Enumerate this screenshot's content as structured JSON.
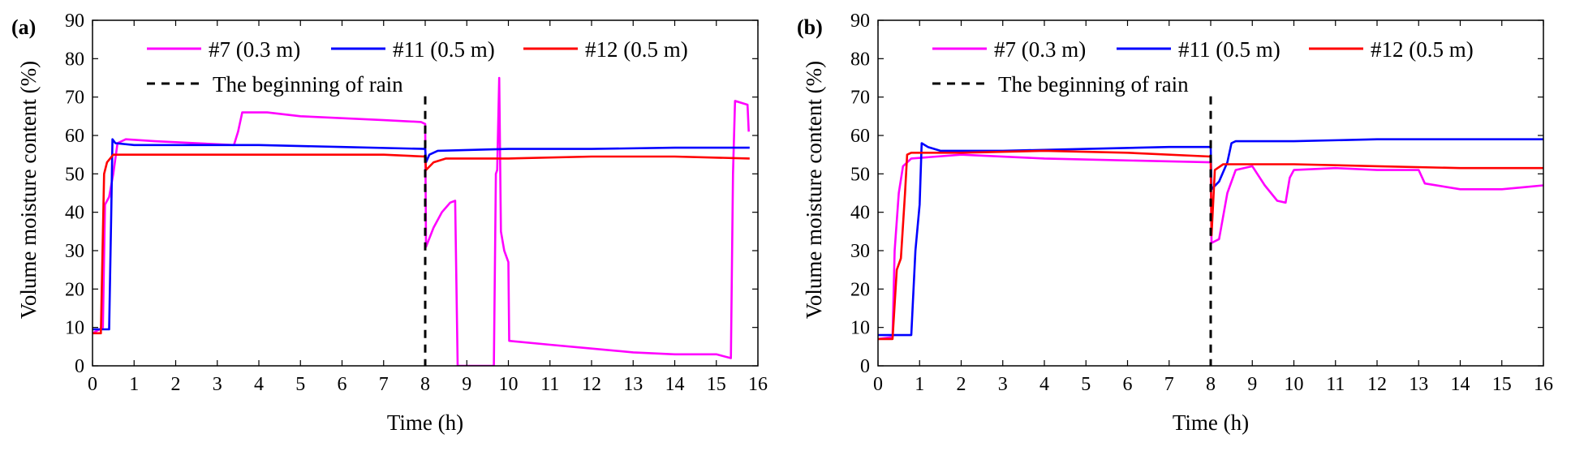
{
  "chart_data": [
    {
      "panel": "(a)",
      "type": "line",
      "xlabel": "Time (h)",
      "ylabel": "Volume moisture content (%)",
      "xlim": [
        0,
        16
      ],
      "ylim": [
        0,
        90
      ],
      "xticks": [
        "0",
        "1",
        "2",
        "3",
        "4",
        "5",
        "6",
        "7",
        "8",
        "9",
        "10",
        "11",
        "12",
        "13",
        "14",
        "15",
        "16"
      ],
      "yticks": [
        "0",
        "10",
        "20",
        "30",
        "40",
        "50",
        "60",
        "70",
        "80",
        "90"
      ],
      "legend": [
        "#7 (0.3 m)",
        "#11 (0.5 m)",
        "#12 (0.5 m)",
        "The beginning of rain"
      ],
      "rain_start": 8,
      "series": [
        {
          "name": "#7 (0.3 m)",
          "color": "#ff00ff",
          "points": [
            [
              0,
              8.5
            ],
            [
              0.25,
              10
            ],
            [
              0.3,
              42
            ],
            [
              0.4,
              44
            ],
            [
              0.5,
              50
            ],
            [
              0.6,
              58
            ],
            [
              0.8,
              59
            ],
            [
              1.5,
              58.5
            ],
            [
              3.4,
              57.5
            ],
            [
              3.5,
              61
            ],
            [
              3.6,
              66
            ],
            [
              4.2,
              66
            ],
            [
              5,
              65
            ],
            [
              6,
              64.5
            ],
            [
              7,
              64
            ],
            [
              7.9,
              63.5
            ],
            [
              8,
              63
            ],
            [
              8.02,
              31
            ],
            [
              8.2,
              36
            ],
            [
              8.4,
              40
            ],
            [
              8.6,
              42.5
            ],
            [
              8.72,
              43
            ],
            [
              8.78,
              0
            ],
            [
              9.65,
              0
            ],
            [
              9.7,
              50
            ],
            [
              9.73,
              51
            ],
            [
              9.78,
              75
            ],
            [
              9.82,
              35
            ],
            [
              9.9,
              30
            ],
            [
              10,
              27
            ],
            [
              10.02,
              6.5
            ],
            [
              11,
              5.5
            ],
            [
              12,
              4.5
            ],
            [
              13,
              3.5
            ],
            [
              14,
              3
            ],
            [
              15,
              3
            ],
            [
              15.35,
              2
            ],
            [
              15.4,
              50
            ],
            [
              15.45,
              69
            ],
            [
              15.6,
              68.5
            ],
            [
              15.75,
              68
            ],
            [
              15.78,
              61
            ]
          ]
        },
        {
          "name": "#11 (0.5 m)",
          "color": "#0000ff",
          "points": [
            [
              0,
              9.5
            ],
            [
              0.4,
              9.5
            ],
            [
              0.45,
              40
            ],
            [
              0.48,
              59
            ],
            [
              0.55,
              58
            ],
            [
              1,
              57.5
            ],
            [
              2,
              57.5
            ],
            [
              4,
              57.5
            ],
            [
              6,
              57
            ],
            [
              8,
              56.5
            ],
            [
              8.02,
              53
            ],
            [
              8.1,
              55
            ],
            [
              8.3,
              56
            ],
            [
              10,
              56.5
            ],
            [
              12,
              56.5
            ],
            [
              14,
              56.8
            ],
            [
              15.8,
              56.8
            ]
          ]
        },
        {
          "name": "#12 (0.5 m)",
          "color": "#ff0000",
          "points": [
            [
              0,
              8.5
            ],
            [
              0.2,
              8.5
            ],
            [
              0.28,
              50
            ],
            [
              0.35,
              53
            ],
            [
              0.5,
              55
            ],
            [
              1,
              55
            ],
            [
              3,
              55
            ],
            [
              5,
              55
            ],
            [
              7,
              55
            ],
            [
              8,
              54.5
            ],
            [
              8.02,
              51
            ],
            [
              8.2,
              53
            ],
            [
              8.5,
              54
            ],
            [
              10,
              54
            ],
            [
              12,
              54.5
            ],
            [
              14,
              54.5
            ],
            [
              15.8,
              54
            ]
          ]
        }
      ]
    },
    {
      "panel": "(b)",
      "type": "line",
      "xlabel": "Time (h)",
      "ylabel": "Volume moisture content (%)",
      "xlim": [
        0,
        16
      ],
      "ylim": [
        0,
        90
      ],
      "xticks": [
        "0",
        "1",
        "2",
        "3",
        "4",
        "5",
        "6",
        "7",
        "8",
        "9",
        "10",
        "11",
        "12",
        "13",
        "14",
        "15",
        "16"
      ],
      "yticks": [
        "0",
        "10",
        "20",
        "30",
        "40",
        "50",
        "60",
        "70",
        "80",
        "90"
      ],
      "legend": [
        "#7 (0.3 m)",
        "#11 (0.5 m)",
        "#12 (0.5 m)",
        "The beginning of rain"
      ],
      "rain_start": 8,
      "series": [
        {
          "name": "#7 (0.3 m)",
          "color": "#ff00ff",
          "points": [
            [
              0,
              7
            ],
            [
              0.35,
              7.5
            ],
            [
              0.4,
              30
            ],
            [
              0.5,
              45
            ],
            [
              0.6,
              52
            ],
            [
              0.8,
              54
            ],
            [
              2,
              55
            ],
            [
              4,
              54
            ],
            [
              6,
              53.5
            ],
            [
              8,
              53
            ],
            [
              8.02,
              32
            ],
            [
              8.2,
              33
            ],
            [
              8.4,
              45
            ],
            [
              8.6,
              51
            ],
            [
              9,
              52
            ],
            [
              9.3,
              47
            ],
            [
              9.6,
              43
            ],
            [
              9.8,
              42.5
            ],
            [
              9.9,
              49
            ],
            [
              10,
              51
            ],
            [
              11,
              51.5
            ],
            [
              12,
              51
            ],
            [
              13,
              51
            ],
            [
              13.15,
              47.5
            ],
            [
              14,
              46
            ],
            [
              15,
              46
            ],
            [
              15.5,
              46.5
            ],
            [
              16,
              47
            ]
          ]
        },
        {
          "name": "#11 (0.5 m)",
          "color": "#0000ff",
          "points": [
            [
              0,
              8
            ],
            [
              0.8,
              8
            ],
            [
              0.9,
              30
            ],
            [
              1,
              42
            ],
            [
              1.05,
              58
            ],
            [
              1.2,
              57
            ],
            [
              1.5,
              56
            ],
            [
              3,
              56
            ],
            [
              5,
              56.5
            ],
            [
              7,
              57
            ],
            [
              8,
              57
            ],
            [
              8.02,
              46
            ],
            [
              8.2,
              48
            ],
            [
              8.4,
              53
            ],
            [
              8.5,
              58
            ],
            [
              8.6,
              58.5
            ],
            [
              10,
              58.5
            ],
            [
              12,
              59
            ],
            [
              14,
              59
            ],
            [
              16,
              59
            ]
          ]
        },
        {
          "name": "#12 (0.5 m)",
          "color": "#ff0000",
          "points": [
            [
              0,
              7
            ],
            [
              0.35,
              7
            ],
            [
              0.45,
              25
            ],
            [
              0.55,
              28
            ],
            [
              0.65,
              45
            ],
            [
              0.7,
              55
            ],
            [
              0.8,
              55.5
            ],
            [
              2,
              55.5
            ],
            [
              4,
              56
            ],
            [
              6,
              55.5
            ],
            [
              8,
              54.5
            ],
            [
              8.02,
              34
            ],
            [
              8.1,
              51
            ],
            [
              8.3,
              52.5
            ],
            [
              10,
              52.5
            ],
            [
              12,
              52
            ],
            [
              14,
              51.5
            ],
            [
              16,
              51.5
            ]
          ]
        }
      ]
    }
  ]
}
